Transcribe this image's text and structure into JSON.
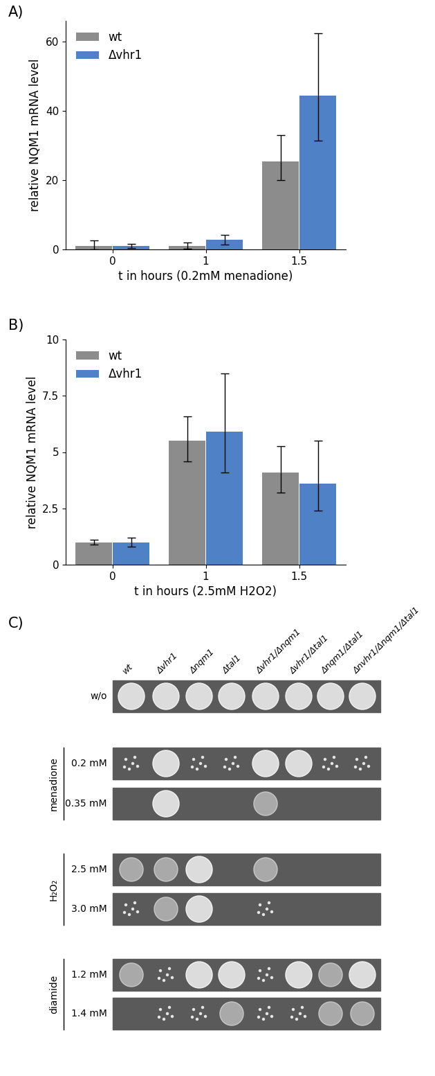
{
  "chart_data": [
    {
      "type": "bar",
      "title": "A)",
      "x_label": "t in hours (0.2mM menadione)",
      "y_label": "relative NQM1 mRNA level",
      "categories": [
        "0",
        "1",
        "1.5"
      ],
      "series": [
        {
          "name": "wt",
          "color": "#8c8c8c",
          "values": [
            1.0,
            1.0,
            25.5
          ],
          "error_low": [
            1.0,
            0.8,
            5.5
          ],
          "error_high": [
            1.6,
            1.0,
            7.5
          ]
        },
        {
          "name": "Δvhr1",
          "color": "#4f81c7",
          "values": [
            1.0,
            2.8,
            44.5
          ],
          "error_low": [
            0.6,
            1.3,
            13.0
          ],
          "error_high": [
            0.6,
            1.4,
            18.0
          ]
        }
      ],
      "ylim": [
        0,
        66
      ],
      "yticks": [
        0,
        20,
        40,
        60
      ],
      "grid": false,
      "legend": "upper left"
    },
    {
      "type": "bar",
      "title": "B)",
      "x_label": "t in hours (2.5mM H2O2)",
      "y_label": "relative NQM1 mRNA level",
      "categories": [
        "0",
        "1",
        "1.5"
      ],
      "series": [
        {
          "name": "wt",
          "color": "#8c8c8c",
          "values": [
            1.0,
            5.5,
            4.1
          ],
          "error_low": [
            0.1,
            0.9,
            0.9
          ],
          "error_high": [
            0.1,
            1.1,
            1.15
          ]
        },
        {
          "name": "Δvhr1",
          "color": "#4f81c7",
          "values": [
            1.0,
            5.9,
            3.6
          ],
          "error_low": [
            0.2,
            1.8,
            1.2
          ],
          "error_high": [
            0.2,
            2.6,
            1.9
          ]
        }
      ],
      "ylim": [
        0,
        10
      ],
      "yticks": [
        0,
        2.5,
        5,
        7.5,
        10
      ],
      "grid": false,
      "legend": "upper left"
    }
  ],
  "spot_assay": {
    "title": "C)",
    "strains": [
      "wt",
      "Δvhr1",
      "Δnqm1",
      "Δtal1",
      "Δvhr1/Δnqm1",
      "Δvhr1/Δtal1",
      "Δnqm1/Δtal1",
      "Δnvhr1/Δnqm1/Δtal1"
    ],
    "untreated": {
      "label": "w/o",
      "growth": [
        3,
        3,
        3,
        3,
        3,
        3,
        3,
        3
      ]
    },
    "treatments": [
      {
        "name": "menadione",
        "rows": [
          {
            "label": "0.2 mM",
            "growth": [
              1,
              3,
              1,
              1,
              3,
              3,
              1,
              1
            ]
          },
          {
            "label": "0.35 mM",
            "growth": [
              0,
              3,
              0,
              0,
              2,
              0,
              0,
              0
            ]
          }
        ]
      },
      {
        "name": "H₂O₂",
        "rows": [
          {
            "label": "2.5 mM",
            "growth": [
              2,
              2,
              3,
              0,
              2,
              0,
              0,
              0
            ]
          },
          {
            "label": "3.0 mM",
            "growth": [
              1,
              2,
              3,
              0,
              1,
              0,
              0,
              0
            ]
          }
        ]
      },
      {
        "name": "diamide",
        "rows": [
          {
            "label": "1.2 mM",
            "growth": [
              2,
              1,
              3,
              3,
              1,
              3,
              2,
              3
            ]
          },
          {
            "label": "1.4 mM",
            "growth": [
              0,
              1,
              1,
              2,
              1,
              1,
              2,
              2
            ]
          }
        ]
      }
    ]
  }
}
